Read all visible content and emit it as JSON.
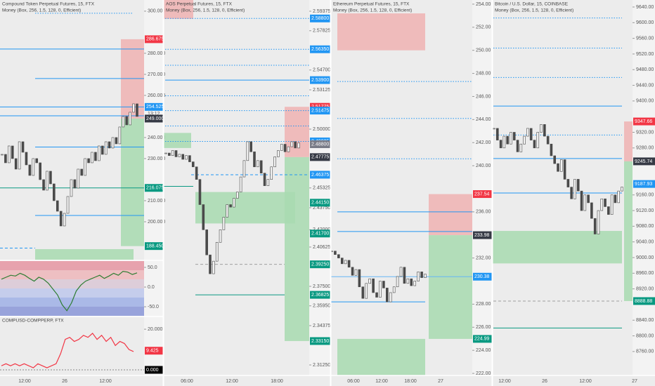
{
  "panels": [
    {
      "title": "Compound Token Perpetual Futures, 15, FTX",
      "indicator": "Money (Box, 256, 1.5, 128, 0, Efficient)",
      "countdown": "13:12",
      "ylim": [
        182,
        305.3
      ],
      "yticks": [
        {
          "value": 300,
          "label": "300.000"
        },
        {
          "value": 280,
          "label": "280.000"
        },
        {
          "value": 270,
          "label": "270.000"
        },
        {
          "value": 260,
          "label": "260.000"
        },
        {
          "value": 240,
          "label": "240.000"
        },
        {
          "value": 230,
          "label": "230.000"
        },
        {
          "value": 210,
          "label": "210.000"
        },
        {
          "value": 200,
          "label": "200.000"
        }
      ],
      "tags": [
        {
          "value": 286.675,
          "label": "286.675",
          "color": "#f23645"
        },
        {
          "value": 254.525,
          "label": "254.525",
          "color": "#2196f3"
        },
        {
          "value": 249,
          "label": "249.000",
          "color": "#363a45"
        },
        {
          "value": 216.075,
          "label": "216.075",
          "color": "#089981"
        },
        {
          "value": 188.45,
          "label": "188.450",
          "color": "#089981"
        }
      ],
      "levels": [
        {
          "value": 299,
          "color": "#2196f3",
          "style": "dotted"
        },
        {
          "value": 282,
          "color": "#2196f3",
          "style": "solid"
        },
        {
          "value": 268,
          "color": "#2196f3",
          "style": "solid"
        },
        {
          "value": 254.525,
          "color": "#2196f3",
          "style": "solid"
        },
        {
          "value": 250.3,
          "color": "#2196f3",
          "style": "solid"
        },
        {
          "value": 235.5,
          "color": "#2196f3",
          "style": "solid"
        },
        {
          "value": 216.075,
          "color": "#089981",
          "style": "solid"
        },
        {
          "value": 203,
          "color": "#2196f3",
          "style": "solid"
        },
        {
          "value": 187.5,
          "color": "#2196f3",
          "style": "dashed"
        }
      ],
      "boxes": [
        {
          "top": 286.675,
          "bottom": 249,
          "color": "#f0b3b3"
        },
        {
          "top": 249,
          "bottom": 188.45,
          "color": "#a8dbb0"
        },
        {
          "top": 187,
          "bottom": 182,
          "color": "#a8dbb0"
        }
      ],
      "closes": [
        232,
        228,
        236,
        230,
        225,
        238,
        233,
        227,
        222,
        230,
        228,
        220,
        215,
        224,
        218,
        210,
        205,
        198,
        204,
        212,
        220,
        216,
        225,
        222,
        230,
        228,
        233,
        229,
        236,
        232,
        238,
        235,
        240,
        237,
        245,
        250,
        246,
        252,
        256,
        250
      ],
      "times": [
        "12:00",
        "26",
        "12:00"
      ],
      "oscillator": {
        "ylim": [
          -73,
          66
        ],
        "yticks": [
          {
            "value": 50,
            "label": "50.0"
          },
          {
            "value": 0,
            "label": "0.0"
          },
          {
            "value": -50,
            "label": "-50.0"
          }
        ],
        "color": "#2e7d32",
        "values": [
          20,
          25,
          30,
          28,
          35,
          30,
          22,
          15,
          25,
          20,
          10,
          -5,
          -20,
          -45,
          -60,
          -40,
          -10,
          5,
          15,
          20,
          25,
          30,
          22,
          28,
          35,
          30,
          40,
          38,
          32,
          36
        ]
      },
      "spread": {
        "title": "COMPUSD-COMPPERP, FTX",
        "ylim": [
          -2.76,
          25.9
        ],
        "yticks": [
          {
            "value": 20,
            "label": "20.000"
          }
        ],
        "tags": [
          {
            "value": 9.425,
            "label": "9.425",
            "color": "#f23645"
          },
          {
            "value": 0,
            "label": "0.000",
            "color": "#000000"
          }
        ],
        "color": "#f23645",
        "values": [
          2,
          3,
          2,
          3,
          2,
          3,
          2,
          1,
          3,
          2,
          1,
          2,
          3,
          8,
          15,
          16,
          14,
          15,
          17,
          16,
          18,
          15,
          17,
          14,
          16,
          12,
          14,
          13,
          10,
          9
        ]
      }
    },
    {
      "title": "AOS Perpetual Futures, 15, FTX",
      "indicator": "Money (Box, 256, 1.5, 128, 0, Efficient)",
      "ylim": [
        2.30413,
        2.60268
      ],
      "yticks": [
        {
          "value": 2.59375,
          "label": "2.59375"
        },
        {
          "value": 2.57825,
          "label": "2.57825"
        },
        {
          "value": 2.547,
          "label": "2.54700"
        },
        {
          "value": 2.53125,
          "label": "2.53125"
        },
        {
          "value": 2.5,
          "label": "2.50000"
        },
        {
          "value": 2.45325,
          "label": "2.45325"
        },
        {
          "value": 2.4375,
          "label": "2.43750"
        },
        {
          "value": 2.42,
          "label": "2.42000"
        },
        {
          "value": 2.40625,
          "label": "2.40625"
        },
        {
          "value": 2.375,
          "label": "2.37500"
        },
        {
          "value": 2.3595,
          "label": "2.35950"
        },
        {
          "value": 2.34375,
          "label": "2.34375"
        },
        {
          "value": 2.3125,
          "label": "2.31250"
        }
      ],
      "tags": [
        {
          "value": 2.588,
          "label": "2.58800",
          "color": "#2196f3"
        },
        {
          "value": 2.5635,
          "label": "2.56350",
          "color": "#2196f3"
        },
        {
          "value": 2.539,
          "label": "2.53900",
          "color": "#2196f3"
        },
        {
          "value": 2.51775,
          "label": "2.51775",
          "color": "#f23645"
        },
        {
          "value": 2.51475,
          "label": "2.51475",
          "color": "#2196f3"
        },
        {
          "value": 2.49025,
          "label": "2.49025",
          "color": "#2196f3"
        },
        {
          "value": 2.488,
          "label": "2.48800",
          "color": "#787b86"
        },
        {
          "value": 2.47775,
          "label": "2.47775",
          "color": "#363a45"
        },
        {
          "value": 2.46375,
          "label": "2.46375",
          "color": "#2196f3"
        },
        {
          "value": 2.4415,
          "label": "2.44150",
          "color": "#089981"
        },
        {
          "value": 2.417,
          "label": "2.41700",
          "color": "#089981"
        },
        {
          "value": 2.3925,
          "label": "2.39250",
          "color": "#089981"
        },
        {
          "value": 2.36825,
          "label": "2.36825",
          "color": "#089981"
        },
        {
          "value": 2.3315,
          "label": "2.33150",
          "color": "#089981"
        }
      ],
      "levels": [
        {
          "value": 2.588,
          "color": "#2196f3",
          "style": "dotted"
        },
        {
          "value": 2.5635,
          "color": "#2196f3",
          "style": "dotted"
        },
        {
          "value": 2.5508,
          "color": "#2196f3",
          "style": "dotted"
        },
        {
          "value": 2.539,
          "color": "#2196f3",
          "style": "solid"
        },
        {
          "value": 2.5265,
          "color": "#2196f3",
          "style": "dotted"
        },
        {
          "value": 2.51475,
          "color": "#2196f3",
          "style": "dotted"
        },
        {
          "value": 2.5025,
          "color": "#2196f3",
          "style": "dotted"
        },
        {
          "value": 2.49025,
          "color": "#2196f3",
          "style": "dotted"
        },
        {
          "value": 2.46375,
          "color": "#2196f3",
          "style": "dashed"
        },
        {
          "value": 2.4545,
          "color": "#089981",
          "style": "solid"
        },
        {
          "value": 2.3925,
          "color": "#9e9e9e",
          "style": "dashed"
        },
        {
          "value": 2.36825,
          "color": "#089981",
          "style": "solid"
        }
      ],
      "boxes": [
        {
          "top": 2.6027,
          "bottom": 2.5877,
          "color": "#f0b3b3"
        },
        {
          "top": 2.497,
          "bottom": 2.485,
          "color": "#a8dbb0"
        },
        {
          "top": 2.45,
          "bottom": 2.425,
          "color": "#a8dbb0"
        },
        {
          "top": 2.51775,
          "bottom": 2.47775,
          "color": "#f0b3b3"
        },
        {
          "top": 2.47775,
          "bottom": 2.3315,
          "color": "#a8dbb0"
        }
      ],
      "closes": [
        2.481,
        2.479,
        2.483,
        2.478,
        2.48,
        2.476,
        2.479,
        2.474,
        2.47,
        2.46,
        2.44,
        2.42,
        2.4,
        2.385,
        2.395,
        2.41,
        2.42,
        2.43,
        2.44,
        2.438,
        2.445,
        2.45,
        2.462,
        2.475,
        2.49,
        2.482,
        2.47,
        2.475,
        2.465,
        2.455,
        2.46,
        2.47,
        2.478,
        2.483,
        2.488,
        2.482,
        2.486,
        2.49,
        2.485,
        2.489
      ],
      "times": [
        "06:00",
        "12:00",
        "18:00"
      ]
    },
    {
      "title": "Ethereum Perpetual Futures, 15, FTX",
      "indicator": "Money (Box, 256, 1.5, 128, 0, Efficient)",
      "ylim": [
        221.82,
        254.36
      ],
      "yticks": [
        {
          "value": 254,
          "label": "254.00"
        },
        {
          "value": 252,
          "label": "252.00"
        },
        {
          "value": 250,
          "label": "250.00"
        },
        {
          "value": 248,
          "label": "248.00"
        },
        {
          "value": 246,
          "label": "246.00"
        },
        {
          "value": 244,
          "label": "244.00"
        },
        {
          "value": 242,
          "label": "242.00"
        },
        {
          "value": 240,
          "label": "240.00"
        },
        {
          "value": 236,
          "label": "236.00"
        },
        {
          "value": 232,
          "label": "232.00"
        },
        {
          "value": 228,
          "label": "228.00"
        },
        {
          "value": 226,
          "label": "226.00"
        },
        {
          "value": 224,
          "label": "224.00"
        },
        {
          "value": 222,
          "label": "222.00"
        }
      ],
      "tags": [
        {
          "value": 237.54,
          "label": "237.54",
          "color": "#f23645"
        },
        {
          "value": 233.98,
          "label": "233.98",
          "color": "#363a45"
        },
        {
          "value": 230.38,
          "label": "230.38",
          "color": "#2196f3"
        },
        {
          "value": 224.99,
          "label": "224.99",
          "color": "#089981"
        }
      ],
      "levels": [
        {
          "value": 247.3,
          "color": "#2196f3",
          "style": "dotted"
        },
        {
          "value": 244.1,
          "color": "#2196f3",
          "style": "dotted"
        },
        {
          "value": 240.6,
          "color": "#2196f3",
          "style": "dotted"
        },
        {
          "value": 236,
          "color": "#2196f3",
          "style": "solid"
        },
        {
          "value": 234.3,
          "color": "#2196f3",
          "style": "solid"
        },
        {
          "value": 230.38,
          "color": "#64b5f6",
          "style": "solid"
        },
        {
          "value": 228.2,
          "color": "#2196f3",
          "style": "solid"
        }
      ],
      "boxes": [
        {
          "top": 253.2,
          "bottom": 250,
          "color": "#f0b3b3"
        },
        {
          "top": 237.54,
          "bottom": 233.98,
          "color": "#f0b3b3"
        },
        {
          "top": 233.98,
          "bottom": 224.99,
          "color": "#a8dbb0"
        },
        {
          "top": 224.99,
          "bottom": 221.82,
          "color": "#a8dbb0"
        }
      ],
      "closes": [
        232.6,
        232.3,
        232,
        231.5,
        231.8,
        231.2,
        230.5,
        231,
        229.5,
        228.5,
        229.8,
        230.2,
        229,
        228.6,
        230,
        229.4,
        228.2,
        229,
        229.5,
        230.4,
        231.2,
        229.8,
        230.2,
        229.6,
        230,
        230.8,
        230.3,
        230.6
      ],
      "times": [
        "06:00",
        "12:00",
        "18:00",
        "27"
      ]
    },
    {
      "title": "Bitcoin / U.S. Dollar, 15, COINBASE",
      "indicator": "Money (Box, 256, 1.5, 128, 0, Efficient)",
      "ylim": [
        8698.8,
        9657.9
      ],
      "yticks": [
        {
          "value": 9640,
          "label": "9640.00"
        },
        {
          "value": 9600,
          "label": "9600.00"
        },
        {
          "value": 9560,
          "label": "9560.00"
        },
        {
          "value": 9520,
          "label": "9520.00"
        },
        {
          "value": 9480,
          "label": "9480.00"
        },
        {
          "value": 9440,
          "label": "9440.00"
        },
        {
          "value": 9400,
          "label": "9400.00"
        },
        {
          "value": 9320,
          "label": "9320.00"
        },
        {
          "value": 9280,
          "label": "9280.00"
        },
        {
          "value": 9160,
          "label": "9160.00"
        },
        {
          "value": 9120,
          "label": "9120.00"
        },
        {
          "value": 9080,
          "label": "9080.00"
        },
        {
          "value": 9040,
          "label": "9040.00"
        },
        {
          "value": 9000,
          "label": "9000.00"
        },
        {
          "value": 8960,
          "label": "8960.00"
        },
        {
          "value": 8920,
          "label": "8920.00"
        },
        {
          "value": 8840,
          "label": "8840.00"
        },
        {
          "value": 8800,
          "label": "8800.00"
        },
        {
          "value": 8760,
          "label": "8760.00"
        }
      ],
      "tags": [
        {
          "value": 9347.66,
          "label": "9347.66",
          "color": "#f23645"
        },
        {
          "value": 9245.74,
          "label": "9245.74",
          "color": "#363a45"
        },
        {
          "value": 9187.93,
          "label": "9187.93",
          "color": "#2196f3"
        },
        {
          "value": 8888.88,
          "label": "8888.88",
          "color": "#089981"
        }
      ],
      "levels": [
        {
          "value": 9612,
          "color": "#2196f3",
          "style": "dotted"
        },
        {
          "value": 9535,
          "color": "#2196f3",
          "style": "dotted"
        },
        {
          "value": 9460,
          "color": "#2196f3",
          "style": "dotted"
        },
        {
          "value": 9387,
          "color": "#2196f3",
          "style": "solid"
        },
        {
          "value": 9313,
          "color": "#2196f3",
          "style": "dotted"
        },
        {
          "value": 9253,
          "color": "#2196f3",
          "style": "solid"
        },
        {
          "value": 9165,
          "color": "#2196f3",
          "style": "solid"
        },
        {
          "value": 8888.88,
          "color": "#9e9e9e",
          "style": "dashed"
        },
        {
          "value": 8820,
          "color": "#089981",
          "style": "solid"
        }
      ],
      "boxes": [
        {
          "top": 9347.66,
          "bottom": 9245.74,
          "color": "#f0b3b3"
        },
        {
          "top": 9245.74,
          "bottom": 8888.88,
          "color": "#a8dbb0"
        },
        {
          "top": 9068,
          "bottom": 8985,
          "color": "#a8dbb0"
        }
      ],
      "closes": [
        9330,
        9300,
        9280,
        9310,
        9290,
        9320,
        9300,
        9270,
        9290,
        9310,
        9330,
        9300,
        9280,
        9320,
        9340,
        9310,
        9290,
        9260,
        9240,
        9220,
        9250,
        9200,
        9180,
        9150,
        9200,
        9170,
        9120,
        9160,
        9140,
        9100,
        9060,
        9120,
        9150,
        9130,
        9110,
        9160,
        9140,
        9170,
        9180
      ],
      "times": [
        "12:00",
        "26",
        "12:00",
        "27"
      ]
    }
  ]
}
